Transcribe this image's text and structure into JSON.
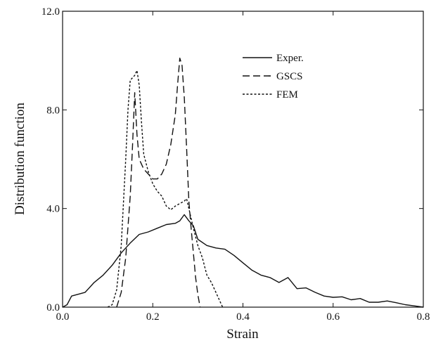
{
  "chart_data": {
    "type": "line",
    "title": "",
    "xlabel": "Strain",
    "ylabel": "Distribution function",
    "xlim": [
      0.0,
      0.8
    ],
    "ylim": [
      0.0,
      12.0
    ],
    "grid": false,
    "legend_position": "top-right",
    "x_ticks": [
      {
        "value": 0.0,
        "label": "0.0"
      },
      {
        "value": 0.2,
        "label": "0.2"
      },
      {
        "value": 0.4,
        "label": "0.4"
      },
      {
        "value": 0.6,
        "label": "0.6"
      },
      {
        "value": 0.8,
        "label": "0.8"
      }
    ],
    "y_ticks": [
      {
        "value": 0.0,
        "label": "0.0"
      },
      {
        "value": 4.0,
        "label": "4.0"
      },
      {
        "value": 8.0,
        "label": "8.0"
      },
      {
        "value": 12.0,
        "label": "12.0"
      }
    ],
    "series": [
      {
        "name": "Exper.",
        "dash": "solid",
        "color": "#111111",
        "points": [
          [
            0.0,
            0.0
          ],
          [
            0.01,
            0.1
          ],
          [
            0.02,
            0.45
          ],
          [
            0.04,
            0.55
          ],
          [
            0.05,
            0.6
          ],
          [
            0.07,
            1.0
          ],
          [
            0.09,
            1.3
          ],
          [
            0.11,
            1.7
          ],
          [
            0.13,
            2.2
          ],
          [
            0.15,
            2.6
          ],
          [
            0.17,
            2.95
          ],
          [
            0.19,
            3.05
          ],
          [
            0.21,
            3.2
          ],
          [
            0.23,
            3.35
          ],
          [
            0.25,
            3.4
          ],
          [
            0.26,
            3.5
          ],
          [
            0.27,
            3.75
          ],
          [
            0.28,
            3.5
          ],
          [
            0.29,
            3.3
          ],
          [
            0.3,
            2.75
          ],
          [
            0.32,
            2.5
          ],
          [
            0.34,
            2.4
          ],
          [
            0.36,
            2.35
          ],
          [
            0.38,
            2.1
          ],
          [
            0.4,
            1.8
          ],
          [
            0.42,
            1.5
          ],
          [
            0.44,
            1.3
          ],
          [
            0.46,
            1.2
          ],
          [
            0.48,
            1.0
          ],
          [
            0.5,
            1.2
          ],
          [
            0.52,
            0.75
          ],
          [
            0.54,
            0.78
          ],
          [
            0.56,
            0.6
          ],
          [
            0.58,
            0.45
          ],
          [
            0.6,
            0.4
          ],
          [
            0.62,
            0.42
          ],
          [
            0.64,
            0.3
          ],
          [
            0.66,
            0.35
          ],
          [
            0.68,
            0.2
          ],
          [
            0.7,
            0.2
          ],
          [
            0.72,
            0.25
          ],
          [
            0.74,
            0.18
          ],
          [
            0.76,
            0.1
          ],
          [
            0.78,
            0.05
          ],
          [
            0.8,
            0.0
          ]
        ]
      },
      {
        "name": "GSCS",
        "dash": "dashed",
        "color": "#111111",
        "points": [
          [
            0.12,
            0.0
          ],
          [
            0.13,
            0.6
          ],
          [
            0.14,
            2.0
          ],
          [
            0.15,
            4.5
          ],
          [
            0.155,
            6.5
          ],
          [
            0.16,
            8.7
          ],
          [
            0.165,
            7.0
          ],
          [
            0.17,
            6.0
          ],
          [
            0.18,
            5.6
          ],
          [
            0.19,
            5.4
          ],
          [
            0.2,
            5.2
          ],
          [
            0.21,
            5.2
          ],
          [
            0.22,
            5.4
          ],
          [
            0.23,
            5.8
          ],
          [
            0.24,
            6.6
          ],
          [
            0.25,
            7.8
          ],
          [
            0.255,
            9.0
          ],
          [
            0.26,
            10.1
          ],
          [
            0.265,
            9.8
          ],
          [
            0.27,
            8.5
          ],
          [
            0.275,
            6.5
          ],
          [
            0.28,
            4.3
          ],
          [
            0.285,
            3.2
          ],
          [
            0.29,
            2.2
          ],
          [
            0.295,
            1.2
          ],
          [
            0.3,
            0.5
          ],
          [
            0.305,
            0.0
          ]
        ]
      },
      {
        "name": "FEM",
        "dash": "dotted",
        "color": "#111111",
        "points": [
          [
            0.1,
            0.0
          ],
          [
            0.11,
            0.1
          ],
          [
            0.12,
            0.7
          ],
          [
            0.13,
            2.5
          ],
          [
            0.14,
            6.0
          ],
          [
            0.145,
            8.0
          ],
          [
            0.15,
            9.2
          ],
          [
            0.16,
            9.4
          ],
          [
            0.165,
            9.6
          ],
          [
            0.17,
            9.0
          ],
          [
            0.175,
            7.5
          ],
          [
            0.18,
            6.2
          ],
          [
            0.19,
            5.5
          ],
          [
            0.2,
            5.0
          ],
          [
            0.21,
            4.7
          ],
          [
            0.22,
            4.5
          ],
          [
            0.23,
            4.1
          ],
          [
            0.24,
            3.95
          ],
          [
            0.25,
            4.1
          ],
          [
            0.26,
            4.2
          ],
          [
            0.27,
            4.3
          ],
          [
            0.275,
            4.4
          ],
          [
            0.28,
            4.0
          ],
          [
            0.29,
            3.2
          ],
          [
            0.3,
            2.5
          ],
          [
            0.31,
            2.0
          ],
          [
            0.32,
            1.3
          ],
          [
            0.33,
            1.0
          ],
          [
            0.34,
            0.6
          ],
          [
            0.35,
            0.2
          ],
          [
            0.355,
            0.0
          ]
        ]
      }
    ]
  }
}
